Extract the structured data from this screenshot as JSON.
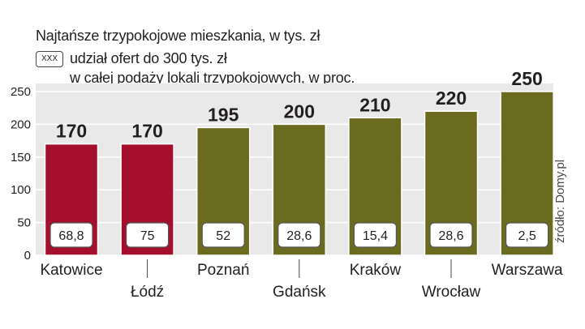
{
  "chart_data": {
    "type": "bar",
    "title": "Najtańsze trzypokojowe mieszkania, w tys. zł",
    "legend": {
      "box_label": "XXX",
      "line1": "udział ofert do 300 tys. zł",
      "line2": "w całej podaży lokali trzypokojowych, w proc."
    },
    "categories": [
      "Katowice",
      "Łódź",
      "Poznań",
      "Gdańsk",
      "Kraków",
      "Wrocław",
      "Warszawa"
    ],
    "values": [
      170,
      170,
      195,
      200,
      210,
      220,
      250
    ],
    "value_labels": [
      "170",
      "170",
      "195",
      "200",
      "210",
      "220",
      "250"
    ],
    "shares": [
      "68,8",
      "75",
      "52",
      "28,6",
      "15,4",
      "28,6",
      "2,5"
    ],
    "colors": [
      "#a50f2d",
      "#a50f2d",
      "#6b6b1f",
      "#6b6b1f",
      "#6b6b1f",
      "#6b6b1f",
      "#6b6b1f"
    ],
    "yticks": [
      "0",
      "50",
      "100",
      "150",
      "200",
      "250"
    ],
    "ylim": [
      0,
      250
    ],
    "xlabel": "",
    "ylabel": "",
    "grid": true,
    "source": "źródło: Domy.pl"
  }
}
